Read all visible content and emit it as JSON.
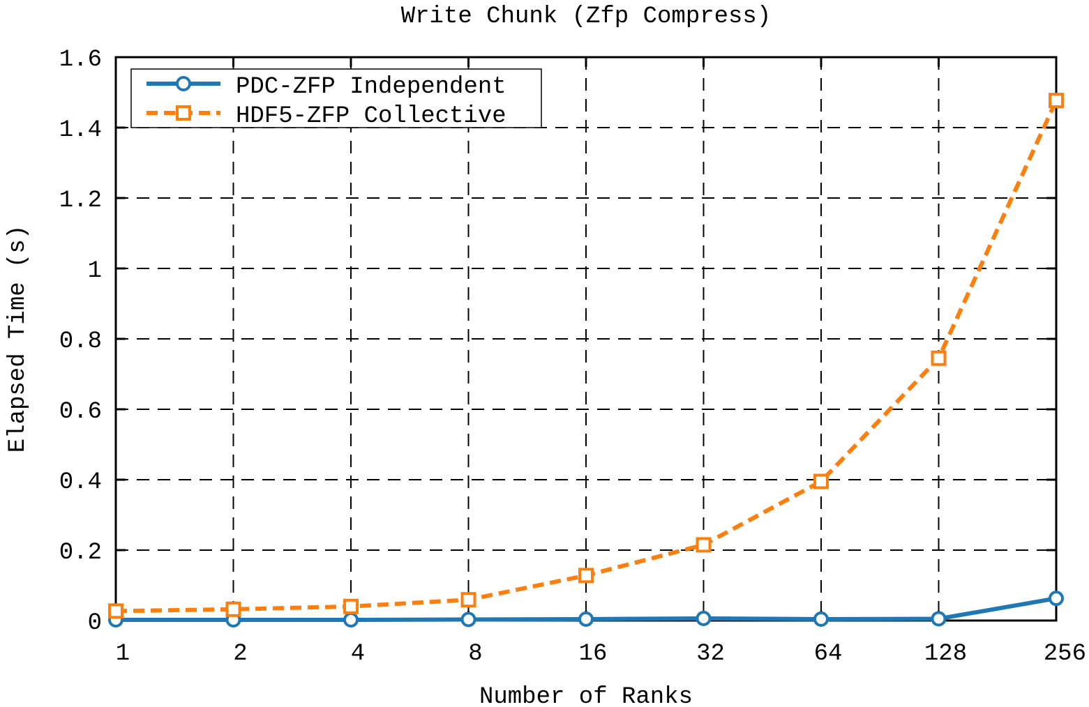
{
  "chart_data": {
    "type": "line",
    "title": "Write Chunk (Zfp Compress)",
    "xlabel": "Number of Ranks",
    "ylabel": "Elapsed Time (s)",
    "categories": [
      "1",
      "2",
      "4",
      "8",
      "16",
      "32",
      "64",
      "128",
      "256"
    ],
    "ylim": [
      0,
      1.6
    ],
    "yticks": [
      0,
      0.2,
      0.4,
      0.6,
      0.8,
      1,
      1.2,
      1.4,
      1.6
    ],
    "ytick_labels": [
      "0",
      "0.2",
      "0.4",
      "0.6",
      "0.8",
      "1",
      "1.2",
      "1.4",
      "1.6"
    ],
    "grid": true,
    "legend": "top-left",
    "series": [
      {
        "name": "PDC-ZFP Independent",
        "color": "#1f77b4",
        "marker": "circle",
        "line_style": "solid",
        "values": [
          0.002,
          0.002,
          0.002,
          0.003,
          0.004,
          0.006,
          0.004,
          0.005,
          0.063
        ]
      },
      {
        "name": "HDF5-ZFP Collective",
        "color": "#ff7f0e",
        "marker": "square",
        "line_style": "dashed",
        "values": [
          0.027,
          0.032,
          0.04,
          0.059,
          0.128,
          0.215,
          0.395,
          0.745,
          1.477
        ]
      }
    ]
  }
}
